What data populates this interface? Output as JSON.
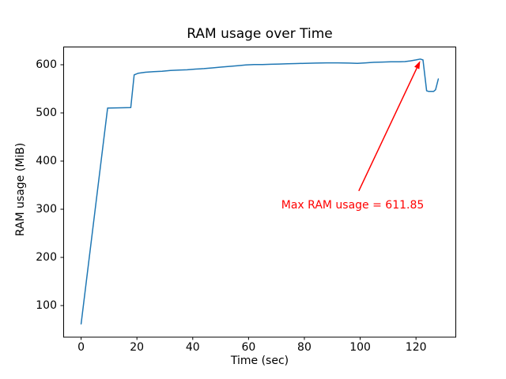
{
  "chart_data": {
    "type": "line",
    "title": "RAM usage over Time",
    "xlabel": "Time (sec)",
    "ylabel": "RAM usage (MiB)",
    "xlim": [
      -6.4,
      134.4
    ],
    "ylim": [
      34.4,
      637.7
    ],
    "xticks": [
      0,
      20,
      40,
      60,
      80,
      100,
      120
    ],
    "yticks": [
      100,
      200,
      300,
      400,
      500,
      600
    ],
    "grid": false,
    "legend_position": "none",
    "line_color": "#1f77b4",
    "axis_color": "#000000",
    "series": [
      {
        "points": [
          [
            0,
            62
          ],
          [
            9.5,
            510
          ],
          [
            17.8,
            511
          ],
          [
            19,
            579
          ],
          [
            20.5,
            582.5
          ],
          [
            23,
            584.5
          ],
          [
            26,
            585.5
          ],
          [
            29,
            586.5
          ],
          [
            32,
            588
          ],
          [
            35,
            589
          ],
          [
            38,
            589.5
          ],
          [
            41,
            591
          ],
          [
            44,
            592
          ],
          [
            47,
            593.5
          ],
          [
            50,
            595
          ],
          [
            53,
            596.5
          ],
          [
            56,
            598
          ],
          [
            59,
            599.5
          ],
          [
            62,
            600.5
          ],
          [
            65,
            600.5
          ],
          [
            68,
            601
          ],
          [
            71,
            601.5
          ],
          [
            74,
            602
          ],
          [
            77,
            602.5
          ],
          [
            80,
            603
          ],
          [
            84,
            603.5
          ],
          [
            88,
            604
          ],
          [
            92,
            604
          ],
          [
            96,
            603.5
          ],
          [
            99,
            603
          ],
          [
            102,
            604
          ],
          [
            105,
            605
          ],
          [
            108,
            605.5
          ],
          [
            111,
            606
          ],
          [
            114,
            606
          ],
          [
            116,
            606.5
          ],
          [
            118,
            608
          ],
          [
            120,
            610
          ],
          [
            121.5,
            611.85
          ],
          [
            122.5,
            610
          ],
          [
            123.8,
            546
          ],
          [
            124.5,
            544.5
          ],
          [
            126.3,
            544.5
          ],
          [
            127,
            548
          ],
          [
            128,
            570.5
          ]
        ]
      }
    ],
    "annotation": {
      "label": "Max RAM usage = 611.85",
      "color": "#ff0000",
      "arrow_tip": [
        121.5,
        608
      ],
      "arrow_tail": [
        99.5,
        338
      ],
      "text_center_x": 97.3,
      "text_top_y": 320
    }
  }
}
